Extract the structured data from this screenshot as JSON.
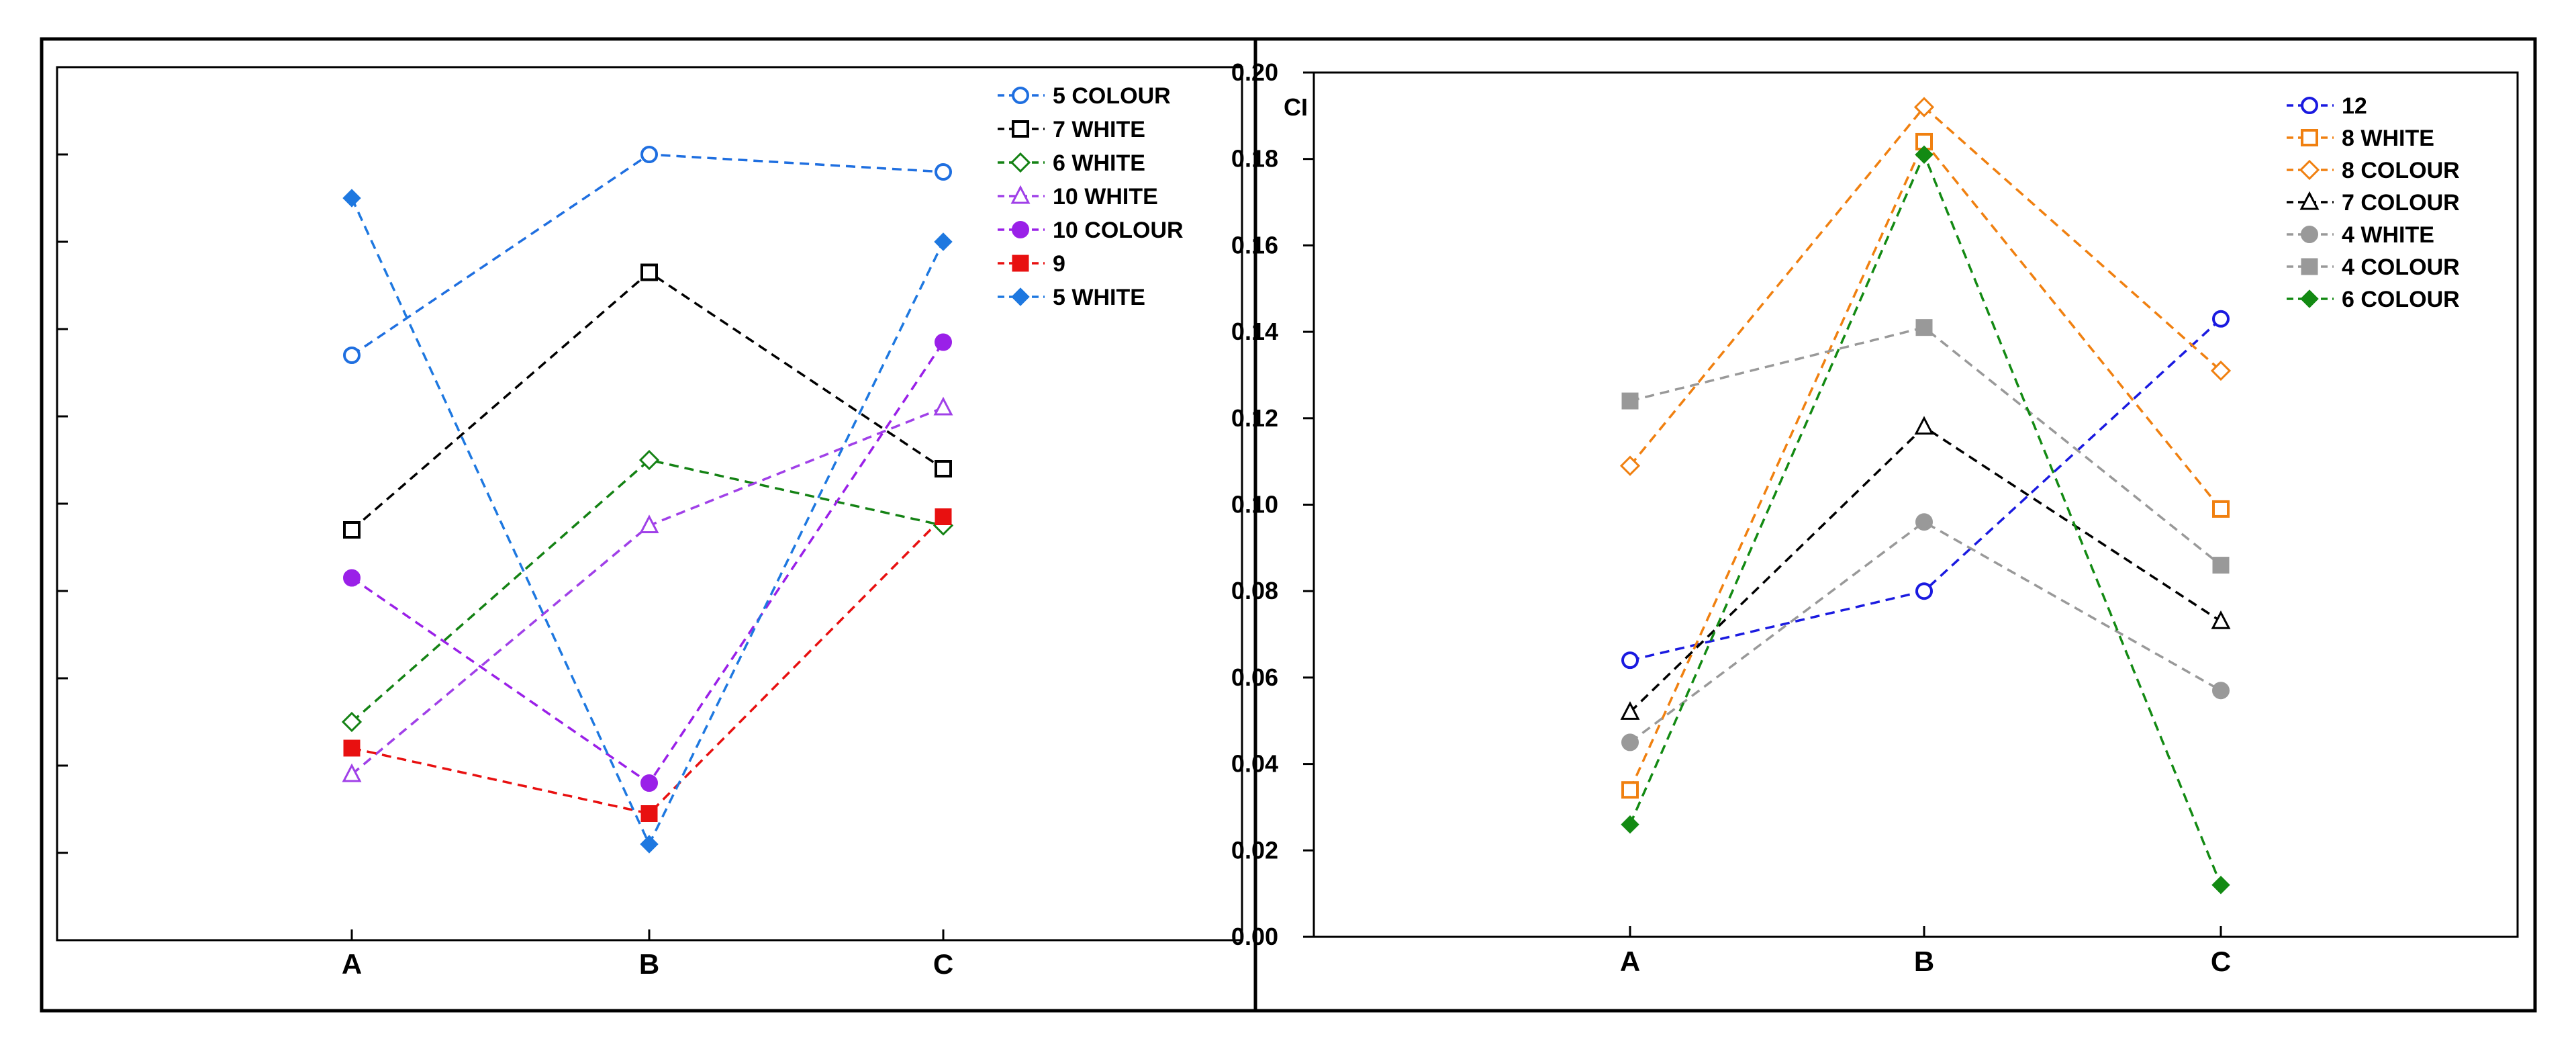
{
  "chart_data": [
    {
      "type": "line",
      "title": "",
      "xlabel": "",
      "ylabel": "",
      "categories": [
        "A",
        "B",
        "C"
      ],
      "ylim": [
        0,
        0.2
      ],
      "ytick_labels_shown": false,
      "grid": false,
      "legend_position": "top-right",
      "series": [
        {
          "name": "5 COLOUR",
          "values": [
            0.134,
            0.18,
            0.176
          ],
          "color": "#1f6fe0",
          "marker": "circle-open",
          "line": "dashed"
        },
        {
          "name": "7 WHITE",
          "values": [
            0.094,
            0.153,
            0.108
          ],
          "color": "#000000",
          "marker": "square-open",
          "line": "dashed"
        },
        {
          "name": "6 WHITE",
          "values": [
            0.05,
            0.11,
            0.095
          ],
          "color": "#148214",
          "marker": "diamond-open",
          "line": "dashed"
        },
        {
          "name": "10 WHITE",
          "values": [
            0.038,
            0.095,
            0.122
          ],
          "color": "#a040e8",
          "marker": "triangle-open",
          "line": "dashed"
        },
        {
          "name": "10 COLOUR",
          "values": [
            0.083,
            0.036,
            0.137
          ],
          "color": "#9a20e8",
          "marker": "circle-filled",
          "line": "dashed"
        },
        {
          "name": "9",
          "values": [
            0.044,
            0.029,
            0.097
          ],
          "color": "#e81010",
          "marker": "square-filled",
          "line": "dashed"
        },
        {
          "name": "5 WHITE",
          "values": [
            0.17,
            0.022,
            0.16
          ],
          "color": "#1e78e0",
          "marker": "diamond-filled",
          "line": "dashed"
        }
      ]
    },
    {
      "type": "line",
      "title": "",
      "xlabel": "",
      "ylabel": "CI",
      "categories": [
        "A",
        "B",
        "C"
      ],
      "ylim": [
        0,
        0.2
      ],
      "yticks": [
        "0.00",
        "0.02",
        "0.04",
        "0.06",
        "0.08",
        "0.10",
        "0.12",
        "0.14",
        "0.16",
        "0.18",
        "0.20"
      ],
      "ytick_labels_shown": true,
      "grid": false,
      "legend_position": "top-right",
      "series": [
        {
          "name": "12",
          "values": [
            0.064,
            0.08,
            0.143
          ],
          "color": "#1a1ae0",
          "marker": "circle-open",
          "line": "dashed"
        },
        {
          "name": "8 WHITE",
          "values": [
            0.034,
            0.184,
            0.099
          ],
          "color": "#f08010",
          "marker": "square-open",
          "line": "dashed"
        },
        {
          "name": "8 COLOUR",
          "values": [
            0.109,
            0.192,
            0.131
          ],
          "color": "#f08010",
          "marker": "diamond-open",
          "line": "dashed"
        },
        {
          "name": "7 COLOUR",
          "values": [
            0.052,
            0.118,
            0.073
          ],
          "color": "#000000",
          "marker": "triangle-open",
          "line": "dashed"
        },
        {
          "name": "4 WHITE",
          "values": [
            0.045,
            0.096,
            0.057
          ],
          "color": "#999999",
          "marker": "circle-filled",
          "line": "dashed"
        },
        {
          "name": "4 COLOUR",
          "values": [
            0.124,
            0.141,
            0.086
          ],
          "color": "#999999",
          "marker": "square-filled",
          "line": "dashed"
        },
        {
          "name": "6 COLOUR",
          "values": [
            0.026,
            0.181,
            0.012
          ],
          "color": "#138a13",
          "marker": "diamond-filled",
          "line": "dashed"
        }
      ]
    }
  ]
}
